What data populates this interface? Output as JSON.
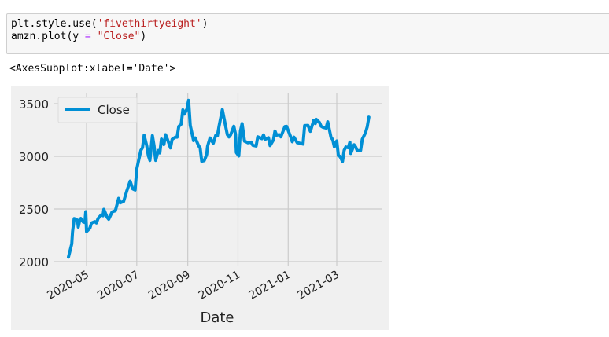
{
  "code_cell": {
    "lines": [
      {
        "parts": [
          {
            "t": "plt.style.use(",
            "c": ""
          },
          {
            "t": "'fivethirtyeight'",
            "c": "str"
          },
          {
            "t": ")",
            "c": ""
          }
        ]
      },
      {
        "parts": [
          {
            "t": "amzn.plot(y ",
            "c": ""
          },
          {
            "t": "=",
            "c": "op"
          },
          {
            "t": " ",
            "c": ""
          },
          {
            "t": "\"Close\"",
            "c": "str"
          },
          {
            "t": ")",
            "c": ""
          }
        ]
      }
    ]
  },
  "output": {
    "repr_text": "<AxesSubplot:xlabel='Date'>"
  },
  "colors": {
    "line": "#008fd5",
    "figure_bg": "#f0f0f0",
    "grid": "#cbcbcb",
    "text": "#222222"
  },
  "chart_data": {
    "type": "line",
    "title": "",
    "xlabel": "Date",
    "ylabel": "",
    "legend": {
      "entries": [
        "Close"
      ],
      "position": "upper left"
    },
    "grid": true,
    "ylim": [
      1970,
      3590
    ],
    "yticks": [
      2000,
      2500,
      3000,
      3500
    ],
    "xticks": [
      "2020-05",
      "2020-07",
      "2020-09",
      "2020-11",
      "2021-01",
      "2021-03"
    ],
    "series": [
      {
        "name": "Close",
        "points": [
          [
            "2020-04-09",
            2043
          ],
          [
            "2020-04-13",
            2168
          ],
          [
            "2020-04-14",
            2283
          ],
          [
            "2020-04-16",
            2409
          ],
          [
            "2020-04-20",
            2393
          ],
          [
            "2020-04-21",
            2328
          ],
          [
            "2020-04-23",
            2399
          ],
          [
            "2020-04-24",
            2410
          ],
          [
            "2020-04-27",
            2376
          ],
          [
            "2020-04-29",
            2372
          ],
          [
            "2020-04-30",
            2474
          ],
          [
            "2020-05-01",
            2286
          ],
          [
            "2020-05-05",
            2317
          ],
          [
            "2020-05-07",
            2367
          ],
          [
            "2020-05-11",
            2380
          ],
          [
            "2020-05-13",
            2367
          ],
          [
            "2020-05-15",
            2409
          ],
          [
            "2020-05-19",
            2444
          ],
          [
            "2020-05-21",
            2436
          ],
          [
            "2020-05-22",
            2496
          ],
          [
            "2020-05-26",
            2421
          ],
          [
            "2020-05-28",
            2402
          ],
          [
            "2020-06-01",
            2471
          ],
          [
            "2020-06-03",
            2478
          ],
          [
            "2020-06-05",
            2483
          ],
          [
            "2020-06-09",
            2600
          ],
          [
            "2020-06-11",
            2558
          ],
          [
            "2020-06-15",
            2572
          ],
          [
            "2020-06-19",
            2675
          ],
          [
            "2020-06-23",
            2764
          ],
          [
            "2020-06-26",
            2692
          ],
          [
            "2020-06-29",
            2680
          ],
          [
            "2020-07-01",
            2878
          ],
          [
            "2020-07-06",
            3057
          ],
          [
            "2020-07-08",
            3081
          ],
          [
            "2020-07-10",
            3200
          ],
          [
            "2020-07-13",
            3104
          ],
          [
            "2020-07-15",
            3008
          ],
          [
            "2020-07-17",
            2961
          ],
          [
            "2020-07-20",
            3196
          ],
          [
            "2020-07-22",
            3100
          ],
          [
            "2020-07-24",
            2961
          ],
          [
            "2020-07-27",
            3055
          ],
          [
            "2020-07-29",
            3033
          ],
          [
            "2020-07-31",
            3164
          ],
          [
            "2020-08-03",
            3111
          ],
          [
            "2020-08-05",
            3205
          ],
          [
            "2020-08-07",
            3167
          ],
          [
            "2020-08-11",
            3080
          ],
          [
            "2020-08-13",
            3162
          ],
          [
            "2020-08-17",
            3182
          ],
          [
            "2020-08-19",
            3182
          ],
          [
            "2020-08-21",
            3284
          ],
          [
            "2020-08-24",
            3307
          ],
          [
            "2020-08-26",
            3441
          ],
          [
            "2020-08-28",
            3401
          ],
          [
            "2020-08-31",
            3450
          ],
          [
            "2020-09-02",
            3531
          ],
          [
            "2020-09-04",
            3294
          ],
          [
            "2020-09-08",
            3149
          ],
          [
            "2020-09-10",
            3175
          ],
          [
            "2020-09-14",
            3102
          ],
          [
            "2020-09-16",
            3078
          ],
          [
            "2020-09-18",
            2954
          ],
          [
            "2020-09-21",
            2960
          ],
          [
            "2020-09-23",
            2999
          ],
          [
            "2020-09-24",
            3019
          ],
          [
            "2020-09-25",
            3095
          ],
          [
            "2020-09-28",
            3174
          ],
          [
            "2020-09-30",
            3148
          ],
          [
            "2020-10-02",
            3125
          ],
          [
            "2020-10-05",
            3199
          ],
          [
            "2020-10-07",
            3195
          ],
          [
            "2020-10-09",
            3286
          ],
          [
            "2020-10-13",
            3443
          ],
          [
            "2020-10-15",
            3363
          ],
          [
            "2020-10-19",
            3207
          ],
          [
            "2020-10-21",
            3184
          ],
          [
            "2020-10-23",
            3204
          ],
          [
            "2020-10-27",
            3286
          ],
          [
            "2020-10-29",
            3211
          ],
          [
            "2020-10-30",
            3036
          ],
          [
            "2020-11-02",
            3004
          ],
          [
            "2020-11-04",
            3241
          ],
          [
            "2020-11-06",
            3311
          ],
          [
            "2020-11-09",
            3143
          ],
          [
            "2020-11-11",
            3137
          ],
          [
            "2020-11-13",
            3128
          ],
          [
            "2020-11-17",
            3135
          ],
          [
            "2020-11-19",
            3105
          ],
          [
            "2020-11-23",
            3098
          ],
          [
            "2020-11-25",
            3185
          ],
          [
            "2020-11-30",
            3168
          ],
          [
            "2020-12-02",
            3203
          ],
          [
            "2020-12-04",
            3162
          ],
          [
            "2020-12-08",
            3177
          ],
          [
            "2020-12-10",
            3102
          ],
          [
            "2020-12-14",
            3156
          ],
          [
            "2020-12-16",
            3240
          ],
          [
            "2020-12-18",
            3201
          ],
          [
            "2020-12-21",
            3206
          ],
          [
            "2020-12-23",
            3185
          ],
          [
            "2020-12-28",
            3283
          ],
          [
            "2020-12-30",
            3285
          ],
          [
            "2021-01-04",
            3186
          ],
          [
            "2021-01-06",
            3138
          ],
          [
            "2021-01-08",
            3182
          ],
          [
            "2021-01-12",
            3128
          ],
          [
            "2021-01-14",
            3127
          ],
          [
            "2021-01-19",
            3116
          ],
          [
            "2021-01-21",
            3292
          ],
          [
            "2021-01-25",
            3294
          ],
          [
            "2021-01-28",
            3237
          ],
          [
            "2021-02-01",
            3342
          ],
          [
            "2021-02-03",
            3312
          ],
          [
            "2021-02-04",
            3352
          ],
          [
            "2021-02-08",
            3322
          ],
          [
            "2021-02-10",
            3286
          ],
          [
            "2021-02-12",
            3277
          ],
          [
            "2021-02-16",
            3268
          ],
          [
            "2021-02-18",
            3328
          ],
          [
            "2021-02-22",
            3180
          ],
          [
            "2021-02-24",
            3160
          ],
          [
            "2021-02-26",
            3092
          ],
          [
            "2021-03-01",
            3146
          ],
          [
            "2021-03-03",
            3005
          ],
          [
            "2021-03-05",
            3000
          ],
          [
            "2021-03-08",
            2951
          ],
          [
            "2021-03-10",
            3057
          ],
          [
            "2021-03-12",
            3089
          ],
          [
            "2021-03-15",
            3081
          ],
          [
            "2021-03-17",
            3135
          ],
          [
            "2021-03-18",
            3027
          ],
          [
            "2021-03-22",
            3110
          ],
          [
            "2021-03-24",
            3087
          ],
          [
            "2021-03-26",
            3052
          ],
          [
            "2021-03-30",
            3055
          ],
          [
            "2021-04-01",
            3161
          ],
          [
            "2021-04-05",
            3226
          ],
          [
            "2021-04-07",
            3279
          ],
          [
            "2021-04-09",
            3372
          ]
        ]
      }
    ]
  }
}
